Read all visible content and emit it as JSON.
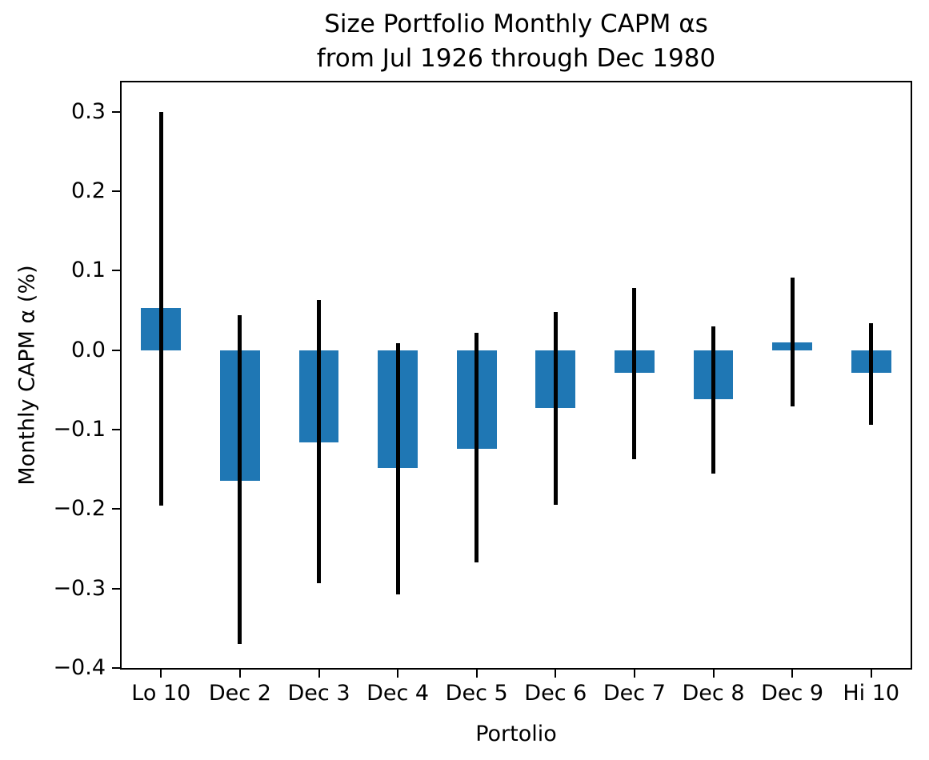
{
  "chart_data": {
    "type": "bar",
    "title": "Size Portfolio Monthly CAPM αs",
    "subtitle": "from Jul 1926 through Dec 1980",
    "xlabel": "Portolio",
    "ylabel": "Monthly CAPM α (%)",
    "categories": [
      "Lo 10",
      "Dec 2",
      "Dec 3",
      "Dec 4",
      "Dec 5",
      "Dec 6",
      "Dec 7",
      "Dec 8",
      "Dec 9",
      "Hi 10"
    ],
    "values": [
      0.053,
      -0.164,
      -0.116,
      -0.148,
      -0.124,
      -0.073,
      -0.028,
      -0.062,
      0.01,
      -0.028
    ],
    "error_low": [
      -0.196,
      -0.37,
      -0.293,
      -0.307,
      -0.267,
      -0.195,
      -0.137,
      -0.155,
      -0.071,
      -0.094
    ],
    "error_high": [
      0.3,
      0.044,
      0.063,
      0.009,
      0.022,
      0.048,
      0.078,
      0.03,
      0.091,
      0.034
    ],
    "ylim": [
      -0.4,
      0.337
    ],
    "yticks": [
      {
        "value": 0.3,
        "label": "0.3"
      },
      {
        "value": 0.2,
        "label": "0.2"
      },
      {
        "value": 0.1,
        "label": "0.1"
      },
      {
        "value": 0.0,
        "label": "0.0"
      },
      {
        "value": -0.1,
        "label": "−0.1"
      },
      {
        "value": -0.2,
        "label": "−0.2"
      },
      {
        "value": -0.3,
        "label": "−0.3"
      },
      {
        "value": -0.4,
        "label": "−0.4"
      }
    ],
    "grid": false,
    "legend": false,
    "bar_color": "#1f77b4",
    "errorbar_color": "#000000",
    "bar_width_fraction": 0.505
  }
}
